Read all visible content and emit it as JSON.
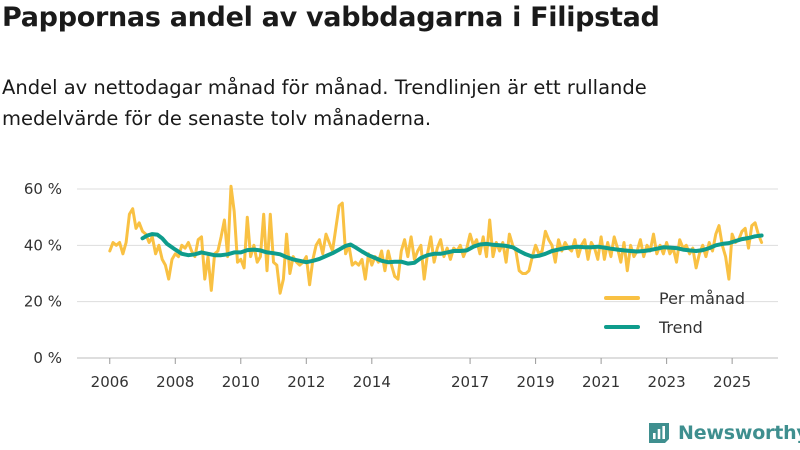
{
  "header": {
    "title": "Pappornas andel av vabbdagarna i Filipstad",
    "subtitle": "Andel av nettodagar månad för månad. Trendlinjen är ett rullande medelvärde för de senaste tolv månaderna."
  },
  "brand": {
    "name": "Newsworthy"
  },
  "colors": {
    "monthly": "#f9c143",
    "trend": "#0e9c8c",
    "grid": "#dddddd",
    "brand": "#3f8f8f"
  },
  "chart_data": {
    "type": "line",
    "title": "Pappornas andel av vabbdagarna i Filipstad",
    "xlabel": "",
    "ylabel": "",
    "ylim": [
      0,
      60
    ],
    "xlim": [
      2005.0,
      2026.4
    ],
    "y_ticks": [
      0,
      20,
      40,
      60
    ],
    "y_tick_labels": [
      "0 %",
      "20 %",
      "40 %",
      "60 %"
    ],
    "x_ticks": [
      2006,
      2008,
      2010,
      2012,
      2014,
      2017,
      2019,
      2021,
      2023,
      2025
    ],
    "x_tick_labels": [
      "2006",
      "2008",
      "2010",
      "2012",
      "2014",
      "2017",
      "2019",
      "2021",
      "2023",
      "2025"
    ],
    "grid": true,
    "legend_position": "bottom-right",
    "series": [
      {
        "name": "Per månad",
        "points": [
          [
            2006.0,
            38
          ],
          [
            2006.1,
            41
          ],
          [
            2006.2,
            40
          ],
          [
            2006.3,
            41
          ],
          [
            2006.4,
            37
          ],
          [
            2006.5,
            41
          ],
          [
            2006.6,
            51
          ],
          [
            2006.7,
            53
          ],
          [
            2006.8,
            46
          ],
          [
            2006.9,
            48
          ],
          [
            2007.0,
            45
          ],
          [
            2007.1,
            44
          ],
          [
            2007.2,
            41
          ],
          [
            2007.3,
            43
          ],
          [
            2007.4,
            37
          ],
          [
            2007.5,
            40
          ],
          [
            2007.6,
            35
          ],
          [
            2007.7,
            33
          ],
          [
            2007.8,
            28
          ],
          [
            2007.9,
            35
          ],
          [
            2008.0,
            37
          ],
          [
            2008.1,
            36
          ],
          [
            2008.2,
            40
          ],
          [
            2008.3,
            39
          ],
          [
            2008.4,
            41
          ],
          [
            2008.5,
            38
          ],
          [
            2008.6,
            36
          ],
          [
            2008.7,
            42
          ],
          [
            2008.8,
            43
          ],
          [
            2008.9,
            28
          ],
          [
            2009.0,
            36
          ],
          [
            2009.1,
            24
          ],
          [
            2009.2,
            37
          ],
          [
            2009.3,
            38
          ],
          [
            2009.4,
            43
          ],
          [
            2009.5,
            49
          ],
          [
            2009.6,
            36
          ],
          [
            2009.7,
            61
          ],
          [
            2009.8,
            52
          ],
          [
            2009.9,
            34
          ],
          [
            2010.0,
            35
          ],
          [
            2010.1,
            32
          ],
          [
            2010.2,
            50
          ],
          [
            2010.3,
            36
          ],
          [
            2010.4,
            40
          ],
          [
            2010.5,
            34
          ],
          [
            2010.6,
            36
          ],
          [
            2010.7,
            51
          ],
          [
            2010.8,
            31
          ],
          [
            2010.9,
            51
          ],
          [
            2011.0,
            34
          ],
          [
            2011.1,
            33
          ],
          [
            2011.2,
            23
          ],
          [
            2011.3,
            28
          ],
          [
            2011.4,
            44
          ],
          [
            2011.5,
            30
          ],
          [
            2011.6,
            36
          ],
          [
            2011.7,
            34
          ],
          [
            2011.8,
            33
          ],
          [
            2011.9,
            34
          ],
          [
            2012.0,
            36
          ],
          [
            2012.1,
            26
          ],
          [
            2012.2,
            35
          ],
          [
            2012.3,
            40
          ],
          [
            2012.4,
            42
          ],
          [
            2012.5,
            37
          ],
          [
            2012.6,
            44
          ],
          [
            2012.7,
            41
          ],
          [
            2012.8,
            38
          ],
          [
            2012.9,
            46
          ],
          [
            2013.0,
            54
          ],
          [
            2013.1,
            55
          ],
          [
            2013.2,
            37
          ],
          [
            2013.3,
            40
          ],
          [
            2013.4,
            33
          ],
          [
            2013.5,
            34
          ],
          [
            2013.6,
            33
          ],
          [
            2013.7,
            35
          ],
          [
            2013.8,
            28
          ],
          [
            2013.9,
            37
          ],
          [
            2014.0,
            33
          ],
          [
            2014.1,
            36
          ],
          [
            2014.2,
            34
          ],
          [
            2014.3,
            38
          ],
          [
            2014.4,
            31
          ],
          [
            2014.5,
            38
          ],
          [
            2014.6,
            33
          ],
          [
            2014.7,
            29
          ],
          [
            2014.8,
            28
          ],
          [
            2014.9,
            38
          ],
          [
            2015.0,
            42
          ],
          [
            2015.1,
            36
          ],
          [
            2015.2,
            43
          ],
          [
            2015.3,
            35
          ],
          [
            2015.4,
            38
          ],
          [
            2015.5,
            40
          ],
          [
            2015.6,
            28
          ],
          [
            2015.7,
            37
          ],
          [
            2015.8,
            43
          ],
          [
            2015.9,
            34
          ],
          [
            2016.0,
            39
          ],
          [
            2016.1,
            42
          ],
          [
            2016.2,
            36
          ],
          [
            2016.3,
            39
          ],
          [
            2016.4,
            35
          ],
          [
            2016.5,
            39
          ],
          [
            2016.6,
            38
          ],
          [
            2016.7,
            40
          ],
          [
            2016.8,
            36
          ],
          [
            2016.9,
            39
          ],
          [
            2017.0,
            44
          ],
          [
            2017.1,
            40
          ],
          [
            2017.2,
            42
          ],
          [
            2017.3,
            37
          ],
          [
            2017.4,
            43
          ],
          [
            2017.5,
            36
          ],
          [
            2017.6,
            49
          ],
          [
            2017.7,
            36
          ],
          [
            2017.8,
            41
          ],
          [
            2017.9,
            38
          ],
          [
            2018.0,
            41
          ],
          [
            2018.1,
            34
          ],
          [
            2018.2,
            44
          ],
          [
            2018.3,
            40
          ],
          [
            2018.4,
            38
          ],
          [
            2018.5,
            31
          ],
          [
            2018.6,
            30
          ],
          [
            2018.7,
            30
          ],
          [
            2018.8,
            31
          ],
          [
            2018.9,
            36
          ],
          [
            2019.0,
            40
          ],
          [
            2019.1,
            37
          ],
          [
            2019.2,
            38
          ],
          [
            2019.3,
            45
          ],
          [
            2019.4,
            42
          ],
          [
            2019.5,
            40
          ],
          [
            2019.6,
            34
          ],
          [
            2019.7,
            42
          ],
          [
            2019.8,
            38
          ],
          [
            2019.9,
            41
          ],
          [
            2020.0,
            39
          ],
          [
            2020.1,
            38
          ],
          [
            2020.2,
            42
          ],
          [
            2020.3,
            36
          ],
          [
            2020.4,
            40
          ],
          [
            2020.5,
            42
          ],
          [
            2020.6,
            35
          ],
          [
            2020.7,
            41
          ],
          [
            2020.8,
            39
          ],
          [
            2020.9,
            35
          ],
          [
            2021.0,
            43
          ],
          [
            2021.1,
            35
          ],
          [
            2021.2,
            41
          ],
          [
            2021.3,
            36
          ],
          [
            2021.4,
            43
          ],
          [
            2021.5,
            39
          ],
          [
            2021.6,
            34
          ],
          [
            2021.7,
            41
          ],
          [
            2021.8,
            31
          ],
          [
            2021.9,
            40
          ],
          [
            2022.0,
            36
          ],
          [
            2022.1,
            38
          ],
          [
            2022.2,
            42
          ],
          [
            2022.3,
            36
          ],
          [
            2022.4,
            40
          ],
          [
            2022.5,
            38
          ],
          [
            2022.6,
            44
          ],
          [
            2022.7,
            37
          ],
          [
            2022.8,
            40
          ],
          [
            2022.9,
            37
          ],
          [
            2023.0,
            41
          ],
          [
            2023.1,
            37
          ],
          [
            2023.2,
            39
          ],
          [
            2023.3,
            34
          ],
          [
            2023.4,
            42
          ],
          [
            2023.5,
            39
          ],
          [
            2023.6,
            40
          ],
          [
            2023.7,
            37
          ],
          [
            2023.8,
            39
          ],
          [
            2023.9,
            32
          ],
          [
            2024.0,
            37
          ],
          [
            2024.1,
            40
          ],
          [
            2024.2,
            36
          ],
          [
            2024.3,
            41
          ],
          [
            2024.4,
            38
          ],
          [
            2024.5,
            44
          ],
          [
            2024.6,
            47
          ],
          [
            2024.7,
            40
          ],
          [
            2024.8,
            36
          ],
          [
            2024.9,
            28
          ],
          [
            2025.0,
            44
          ],
          [
            2025.1,
            41
          ],
          [
            2025.2,
            42
          ],
          [
            2025.3,
            45
          ],
          [
            2025.4,
            46
          ],
          [
            2025.5,
            39
          ],
          [
            2025.6,
            47
          ],
          [
            2025.7,
            48
          ],
          [
            2025.8,
            44
          ],
          [
            2025.9,
            41
          ]
        ]
      },
      {
        "name": "Trend",
        "points": [
          [
            2007.0,
            42.5
          ],
          [
            2007.15,
            43.5
          ],
          [
            2007.3,
            44
          ],
          [
            2007.45,
            43.8
          ],
          [
            2007.6,
            42.5
          ],
          [
            2007.75,
            40.5
          ],
          [
            2008.0,
            38.5
          ],
          [
            2008.2,
            37
          ],
          [
            2008.4,
            36.5
          ],
          [
            2008.6,
            36.8
          ],
          [
            2008.8,
            37.5
          ],
          [
            2009.0,
            37
          ],
          [
            2009.2,
            36.5
          ],
          [
            2009.4,
            36.5
          ],
          [
            2009.6,
            36.8
          ],
          [
            2009.8,
            37.5
          ],
          [
            2010.0,
            37.5
          ],
          [
            2010.2,
            38.3
          ],
          [
            2010.4,
            38.5
          ],
          [
            2010.6,
            38.2
          ],
          [
            2010.8,
            37.5
          ],
          [
            2011.0,
            37.2
          ],
          [
            2011.2,
            36.8
          ],
          [
            2011.4,
            35.8
          ],
          [
            2011.6,
            35
          ],
          [
            2011.8,
            34.5
          ],
          [
            2012.0,
            34
          ],
          [
            2012.2,
            34.5
          ],
          [
            2012.4,
            35.2
          ],
          [
            2012.6,
            36.2
          ],
          [
            2012.8,
            37.2
          ],
          [
            2013.0,
            38.5
          ],
          [
            2013.2,
            39.8
          ],
          [
            2013.35,
            40.3
          ],
          [
            2013.5,
            39.3
          ],
          [
            2013.7,
            37.8
          ],
          [
            2013.9,
            36.5
          ],
          [
            2014.1,
            35.5
          ],
          [
            2014.3,
            34.5
          ],
          [
            2014.5,
            34
          ],
          [
            2014.7,
            34.2
          ],
          [
            2014.9,
            34.2
          ],
          [
            2015.1,
            33.5
          ],
          [
            2015.3,
            33.8
          ],
          [
            2015.5,
            35.5
          ],
          [
            2015.7,
            36.5
          ],
          [
            2015.9,
            37
          ],
          [
            2016.1,
            37
          ],
          [
            2016.3,
            37.5
          ],
          [
            2016.5,
            38
          ],
          [
            2016.7,
            38
          ],
          [
            2016.9,
            38.2
          ],
          [
            2017.1,
            39.5
          ],
          [
            2017.3,
            40.3
          ],
          [
            2017.5,
            40.5
          ],
          [
            2017.7,
            40.2
          ],
          [
            2017.9,
            40
          ],
          [
            2018.1,
            39.8
          ],
          [
            2018.3,
            39.3
          ],
          [
            2018.5,
            38
          ],
          [
            2018.7,
            36.8
          ],
          [
            2018.9,
            36
          ],
          [
            2019.1,
            36.3
          ],
          [
            2019.3,
            37
          ],
          [
            2019.5,
            38
          ],
          [
            2019.7,
            38.5
          ],
          [
            2019.9,
            39
          ],
          [
            2020.1,
            39.3
          ],
          [
            2020.3,
            39.5
          ],
          [
            2020.5,
            39.3
          ],
          [
            2020.7,
            39.3
          ],
          [
            2020.9,
            39.5
          ],
          [
            2021.1,
            39.2
          ],
          [
            2021.3,
            38.8
          ],
          [
            2021.5,
            38.5
          ],
          [
            2021.7,
            38.2
          ],
          [
            2021.9,
            38
          ],
          [
            2022.1,
            37.8
          ],
          [
            2022.3,
            38
          ],
          [
            2022.5,
            38.3
          ],
          [
            2022.7,
            38.8
          ],
          [
            2022.9,
            39.3
          ],
          [
            2023.1,
            39.2
          ],
          [
            2023.3,
            39
          ],
          [
            2023.5,
            38.5
          ],
          [
            2023.7,
            38.2
          ],
          [
            2023.9,
            38
          ],
          [
            2024.1,
            38.3
          ],
          [
            2024.3,
            39
          ],
          [
            2024.5,
            40
          ],
          [
            2024.7,
            40.5
          ],
          [
            2024.9,
            40.8
          ],
          [
            2025.1,
            41.5
          ],
          [
            2025.3,
            42.2
          ],
          [
            2025.5,
            42.6
          ],
          [
            2025.7,
            43.2
          ],
          [
            2025.9,
            43.5
          ]
        ]
      }
    ]
  }
}
